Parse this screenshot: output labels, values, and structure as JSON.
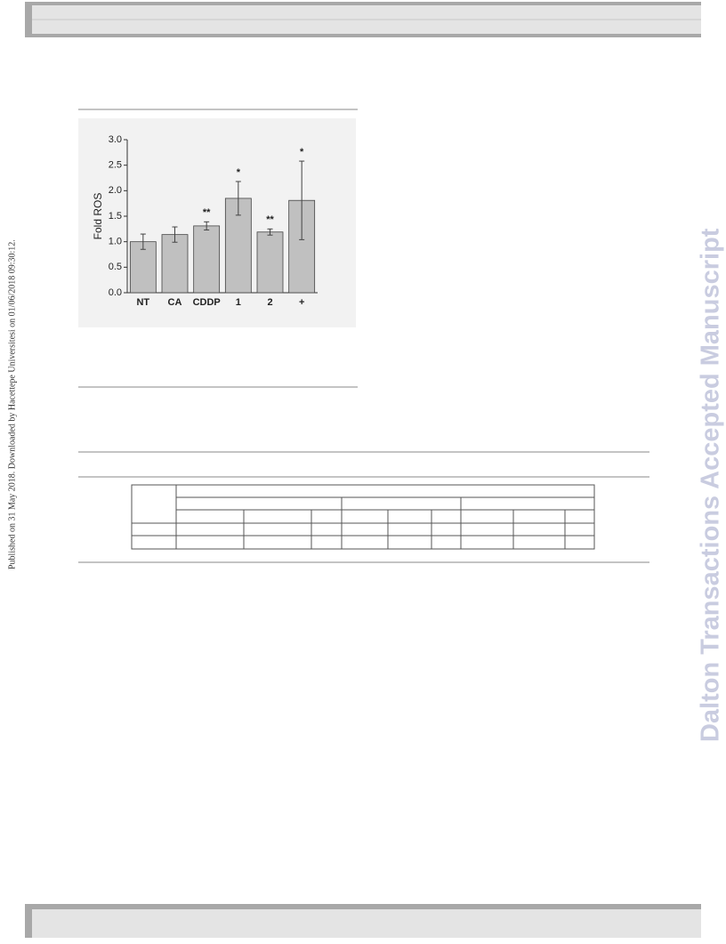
{
  "side_note": "Published on 31 May 2018. Downloaded by Hacettepe Universitesi on 01/06/2018 09:30:12.",
  "watermark": "Dalton Transactions Accepted Manuscript",
  "chart_data": {
    "type": "bar",
    "ylabel": "Fold ROS",
    "categories": [
      "NT",
      "CA",
      "CDDP",
      "1",
      "2",
      "+"
    ],
    "values": [
      1.0,
      1.14,
      1.31,
      1.85,
      1.19,
      1.81
    ],
    "errors": [
      0.15,
      0.15,
      0.08,
      0.33,
      0.06,
      0.77
    ],
    "annotations": [
      null,
      null,
      "**",
      "*",
      "**",
      "*"
    ],
    "color": "#c0c0c0",
    "ylim": [
      0,
      3
    ],
    "yticks": [
      {
        "value": 0,
        "label": "0.0"
      },
      0.5,
      {
        "value": 1,
        "label": "1.0"
      },
      1.5,
      {
        "value": 2,
        "label": "2.0"
      },
      2.5,
      {
        "value": 3,
        "label": "3.0"
      }
    ]
  }
}
